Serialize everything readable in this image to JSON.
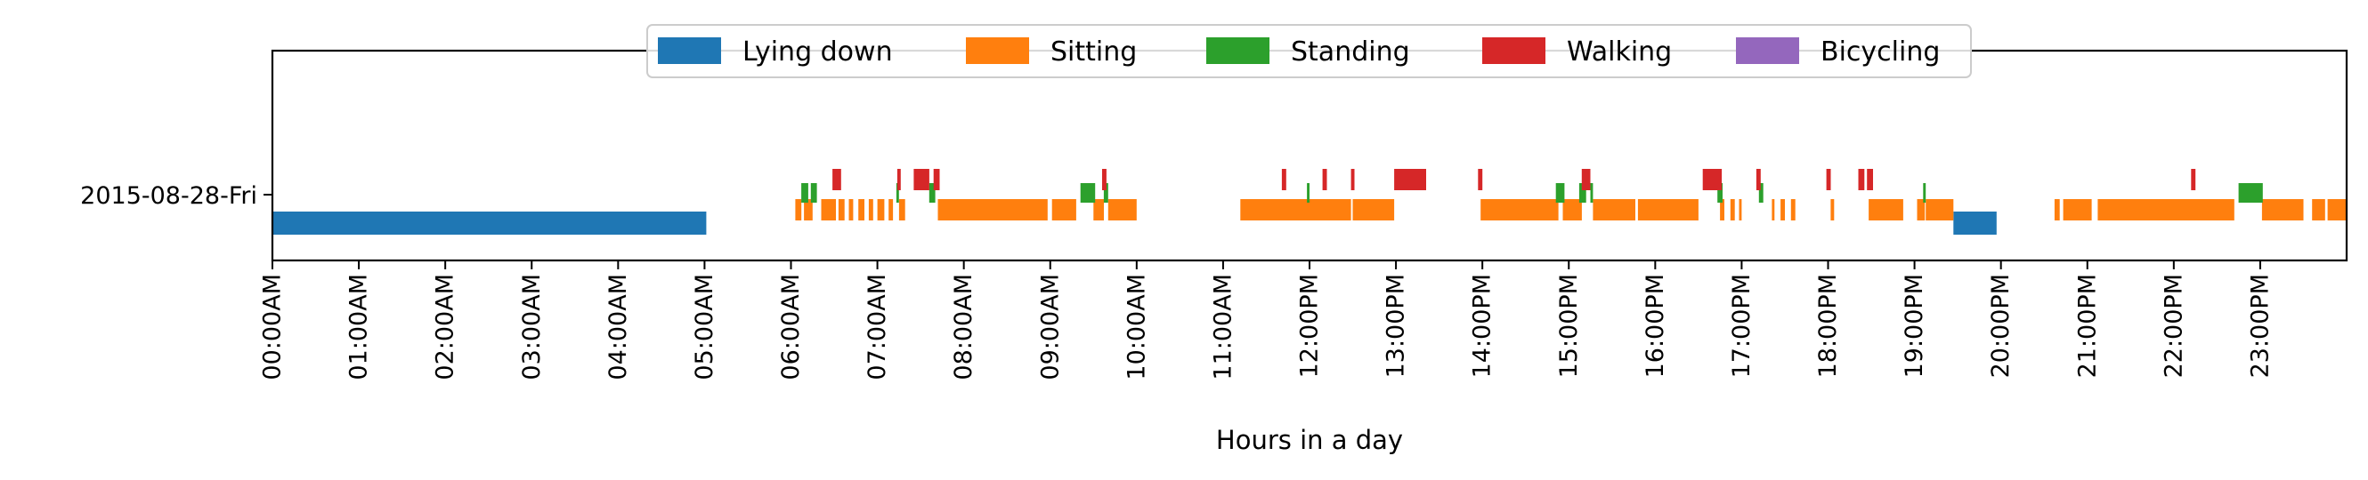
{
  "chart_data": {
    "type": "timeline",
    "xlabel": "Hours in a day",
    "xlim_hours": [
      0,
      24
    ],
    "y_categories": [
      "2015-08-28-Fri"
    ],
    "x_ticks": [
      "00:00AM",
      "01:00AM",
      "02:00AM",
      "03:00AM",
      "04:00AM",
      "05:00AM",
      "06:00AM",
      "07:00AM",
      "08:00AM",
      "09:00AM",
      "10:00AM",
      "11:00AM",
      "12:00PM",
      "13:00PM",
      "14:00PM",
      "15:00PM",
      "16:00PM",
      "17:00PM",
      "18:00PM",
      "19:00PM",
      "20:00PM",
      "21:00PM",
      "22:00PM",
      "23:00PM"
    ],
    "legend": {
      "placement": "top-center"
    },
    "series": [
      {
        "name": "Lying down",
        "color": "#1f77b4",
        "intervals": [
          [
            0.0,
            5.02
          ],
          [
            19.45,
            19.95
          ]
        ]
      },
      {
        "name": "Sitting",
        "color": "#ff7f0e",
        "intervals": [
          [
            6.05,
            6.12
          ],
          [
            6.15,
            6.25
          ],
          [
            6.35,
            6.52
          ],
          [
            6.55,
            6.62
          ],
          [
            6.67,
            6.72
          ],
          [
            6.78,
            6.85
          ],
          [
            6.9,
            6.95
          ],
          [
            7.0,
            7.08
          ],
          [
            7.13,
            7.18
          ],
          [
            7.25,
            7.32
          ],
          [
            7.7,
            8.97
          ],
          [
            9.02,
            9.3
          ],
          [
            9.5,
            9.62
          ],
          [
            9.67,
            10.0
          ],
          [
            11.2,
            12.48
          ],
          [
            12.5,
            12.98
          ],
          [
            13.98,
            14.88
          ],
          [
            14.93,
            15.15
          ],
          [
            15.28,
            15.77
          ],
          [
            15.8,
            16.5
          ],
          [
            16.75,
            16.8
          ],
          [
            16.87,
            16.92
          ],
          [
            16.97,
            17.0
          ],
          [
            17.35,
            17.38
          ],
          [
            17.45,
            17.5
          ],
          [
            17.57,
            17.62
          ],
          [
            18.03,
            18.07
          ],
          [
            18.47,
            18.87
          ],
          [
            19.03,
            19.12
          ],
          [
            19.13,
            19.45
          ],
          [
            20.62,
            20.68
          ],
          [
            20.72,
            21.05
          ],
          [
            21.12,
            22.7
          ],
          [
            23.02,
            23.5
          ],
          [
            23.6,
            23.75
          ],
          [
            23.78,
            24.0
          ]
        ]
      },
      {
        "name": "Standing",
        "color": "#2ca02c",
        "intervals": [
          [
            6.12,
            6.2
          ],
          [
            6.23,
            6.3
          ],
          [
            7.22,
            7.25
          ],
          [
            7.6,
            7.67
          ],
          [
            9.35,
            9.52
          ],
          [
            9.62,
            9.67
          ],
          [
            11.97,
            12.0
          ],
          [
            14.85,
            14.95
          ],
          [
            15.12,
            15.2
          ],
          [
            15.25,
            15.28
          ],
          [
            16.72,
            16.78
          ],
          [
            17.2,
            17.25
          ],
          [
            19.1,
            19.13
          ],
          [
            22.75,
            23.03
          ]
        ]
      },
      {
        "name": "Walking",
        "color": "#d62728",
        "intervals": [
          [
            6.48,
            6.58
          ],
          [
            7.23,
            7.27
          ],
          [
            7.42,
            7.6
          ],
          [
            7.65,
            7.72
          ],
          [
            9.6,
            9.65
          ],
          [
            11.68,
            11.73
          ],
          [
            12.15,
            12.2
          ],
          [
            12.48,
            12.52
          ],
          [
            12.98,
            13.35
          ],
          [
            13.95,
            14.0
          ],
          [
            15.15,
            15.25
          ],
          [
            16.55,
            16.77
          ],
          [
            17.17,
            17.22
          ],
          [
            17.98,
            18.03
          ],
          [
            18.35,
            18.42
          ],
          [
            18.45,
            18.52
          ],
          [
            22.2,
            22.25
          ]
        ]
      },
      {
        "name": "Bicycling",
        "color": "#9467bd",
        "intervals": []
      }
    ]
  }
}
